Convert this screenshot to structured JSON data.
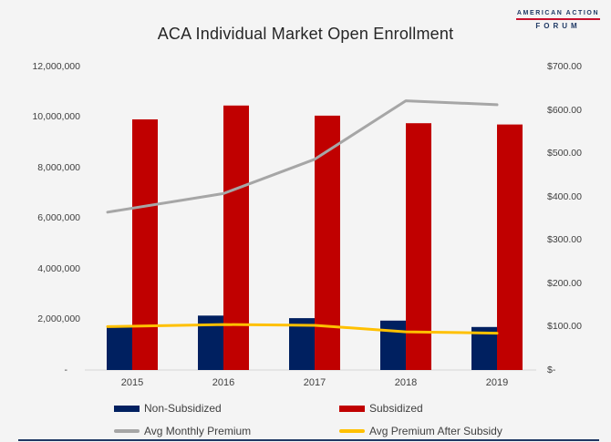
{
  "page": {
    "background": "#f4f4f4"
  },
  "logo": {
    "line1": "AMERICAN ACTION",
    "line2": "FORUM",
    "navy": "#1f3864",
    "red": "#c8102e"
  },
  "chart_data": {
    "type": "bar",
    "subtype": "combo-bar-line-dual-axis",
    "title": "ACA Individual Market Open Enrollment",
    "categories": [
      "2015",
      "2016",
      "2017",
      "2018",
      "2019"
    ],
    "series": [
      {
        "name": "Non-Subsidized",
        "type": "bar",
        "axis": "left",
        "color": "#002060",
        "values": [
          1700000,
          2150000,
          2050000,
          1950000,
          1700000
        ]
      },
      {
        "name": "Subsidized",
        "type": "bar",
        "axis": "left",
        "color": "#c00000",
        "values": [
          9900000,
          10450000,
          10050000,
          9750000,
          9700000
        ]
      },
      {
        "name": "Avg Monthly Premium",
        "type": "line",
        "axis": "right",
        "color": "#a6a6a6",
        "values": [
          364,
          407,
          486,
          621,
          612
        ]
      },
      {
        "name": "Avg Premium After Subsidy",
        "type": "line",
        "axis": "right",
        "color": "#ffc000",
        "values": [
          100,
          105,
          103,
          88,
          85
        ]
      }
    ],
    "left_axis": {
      "min": 0,
      "max": 12000000,
      "step": 2000000,
      "labels": [
        "12,000,000",
        "10,000,000",
        "8,000,000",
        "6,000,000",
        "4,000,000",
        "2,000,000",
        "-"
      ]
    },
    "right_axis": {
      "min": 0,
      "max": 700,
      "step": 100,
      "labels": [
        "$700.00",
        "$600.00",
        "$500.00",
        "$400.00",
        "$300.00",
        "$200.00",
        "$100.00",
        "$-"
      ]
    },
    "grid": "off",
    "legend_position": "bottom",
    "axis_line_color": "#d6d6d6"
  }
}
